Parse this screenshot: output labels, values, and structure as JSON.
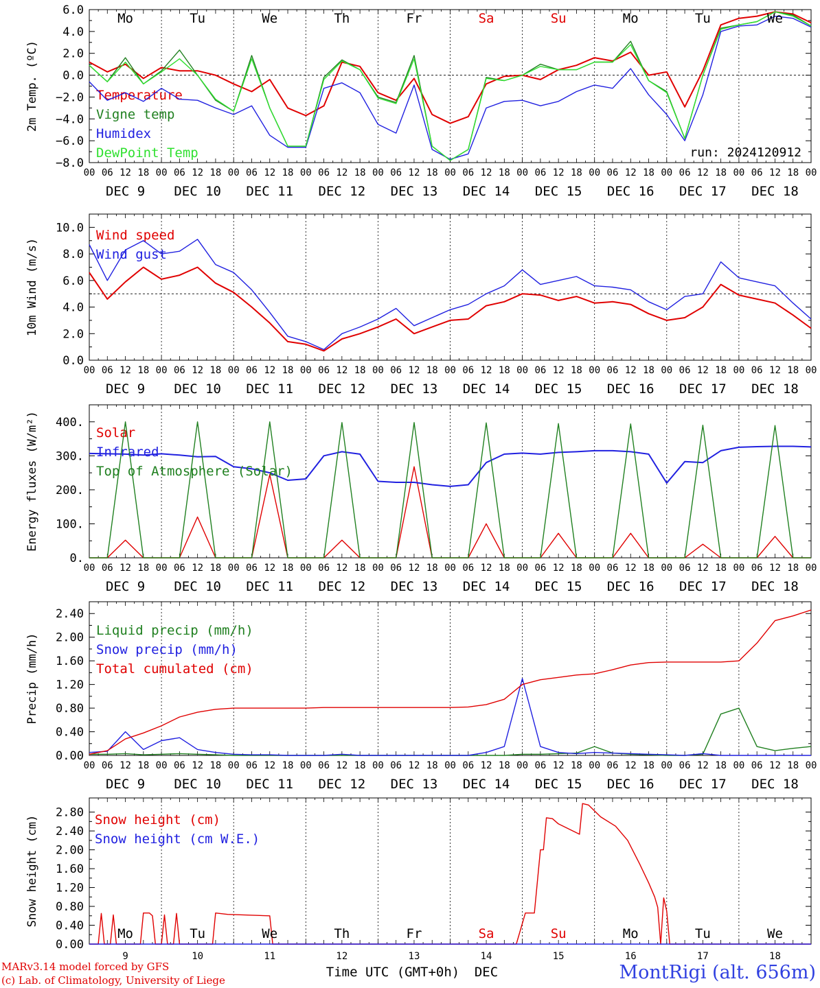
{
  "credits": {
    "line1": "MARv3.14 model forced by GFS",
    "line2": "(c) Lab. of Climatology, University of Liege"
  },
  "station": "MontRigi (alt. 656m)",
  "footer": {
    "xlabel": "Time UTC (GMT+0h)",
    "month": "DEC",
    "day_numbers": [
      "9",
      "10",
      "11",
      "12",
      "13",
      "14",
      "15",
      "16",
      "17",
      "18"
    ]
  },
  "timeline": {
    "days": [
      "DEC  9",
      "DEC 10",
      "DEC 11",
      "DEC 12",
      "DEC 13",
      "DEC 14",
      "DEC 15",
      "DEC 16",
      "DEC 17",
      "DEC 18"
    ],
    "weekdays": [
      "Mo",
      "Tu",
      "We",
      "Th",
      "Fr",
      "Sa",
      "Su",
      "Mo",
      "Tu",
      "We"
    ],
    "weekend_color": "#e00000",
    "hour_ticks": [
      "00",
      "06",
      "12",
      "18"
    ],
    "end_tick": "00"
  },
  "chart_data": [
    {
      "type": "line",
      "title": "",
      "ylabel": "2m Temp. (ºC)",
      "ylim": [
        -8,
        6
      ],
      "yticks": [
        "6.0",
        "4.0",
        "2.0",
        "0.0",
        "−2.0",
        "−4.0",
        "−6.0",
        "−8.0"
      ],
      "yticks_values": [
        6,
        4,
        2,
        0,
        -2,
        -4,
        -6,
        -8
      ],
      "reference_line": 0,
      "annotation": "run: 2024120912",
      "x_hours_since_dec9_00utc": [
        0,
        6,
        12,
        18,
        24,
        30,
        36,
        42,
        48,
        54,
        60,
        66,
        72,
        78,
        84,
        90,
        96,
        102,
        108,
        114,
        120,
        126,
        132,
        138,
        144,
        150,
        156,
        162,
        168,
        174,
        180,
        186,
        192,
        198,
        204,
        210,
        216,
        222,
        228,
        234,
        240
      ],
      "series": [
        {
          "name": "Temperature",
          "color": "#e00000",
          "values": [
            1.2,
            0.3,
            1.0,
            -0.3,
            0.7,
            0.4,
            0.4,
            0.0,
            -0.8,
            -1.5,
            -0.4,
            -3.0,
            -3.7,
            -2.8,
            1.2,
            0.8,
            -1.6,
            -2.3,
            -0.3,
            -3.6,
            -4.4,
            -3.8,
            -0.8,
            -0.1,
            0.0,
            -0.4,
            0.5,
            0.9,
            1.6,
            1.3,
            2.1,
            0.0,
            0.3,
            -2.9,
            0.4,
            4.6,
            5.2,
            5.4,
            5.8,
            5.6,
            4.8
          ]
        },
        {
          "name": "Vigne temp",
          "color": "#208020",
          "values": [
            0.9,
            -0.6,
            1.6,
            -0.8,
            0.4,
            2.3,
            0.0,
            -2.3,
            -3.3,
            1.8,
            -3.0,
            -6.5,
            -6.5,
            -0.2,
            1.4,
            0.5,
            -2.0,
            -2.5,
            1.8,
            -6.5,
            -7.8,
            -6.8,
            -0.2,
            -0.5,
            0.0,
            1.0,
            0.5,
            0.5,
            1.2,
            1.2,
            3.1,
            -0.5,
            -1.5,
            -5.8,
            0.0,
            4.3,
            4.6,
            4.9,
            5.8,
            5.5,
            4.5
          ]
        },
        {
          "name": "Humidex",
          "color": "#2020e0",
          "values": [
            -0.6,
            -2.3,
            -1.6,
            -2.4,
            -1.2,
            -2.2,
            -2.3,
            -3.0,
            -3.6,
            -2.8,
            -5.5,
            -6.6,
            -6.6,
            -1.2,
            -0.7,
            -1.6,
            -4.5,
            -5.3,
            -0.9,
            -6.8,
            -7.7,
            -7.2,
            -3.0,
            -2.4,
            -2.3,
            -2.8,
            -2.4,
            -1.5,
            -0.9,
            -1.2,
            0.6,
            -1.8,
            -3.6,
            -6.0,
            -1.8,
            4.0,
            4.5,
            4.6,
            5.4,
            5.2,
            4.4
          ]
        },
        {
          "name": "DewPoint Temp",
          "color": "#30e030",
          "values": [
            0.9,
            -0.6,
            1.2,
            -0.8,
            0.3,
            1.5,
            0.0,
            -2.2,
            -3.3,
            1.5,
            -3.0,
            -6.5,
            -6.5,
            -0.4,
            1.3,
            0.5,
            -2.1,
            -2.6,
            1.5,
            -6.5,
            -7.8,
            -6.8,
            -0.3,
            -0.5,
            0.0,
            0.8,
            0.5,
            0.5,
            1.2,
            1.2,
            2.8,
            -0.5,
            -1.6,
            -5.8,
            0.0,
            4.2,
            4.6,
            4.9,
            5.8,
            5.4,
            4.5
          ]
        }
      ]
    },
    {
      "type": "line",
      "title": "",
      "ylabel": "10m Wind (m/s)",
      "ylim": [
        0,
        11
      ],
      "yticks": [
        "10.0",
        "8.0",
        "6.0",
        "4.0",
        "2.0",
        "0.0"
      ],
      "yticks_values": [
        10,
        8,
        6,
        4,
        2,
        0
      ],
      "reference_line": 5,
      "x_hours_since_dec9_00utc": [
        0,
        6,
        12,
        18,
        24,
        30,
        36,
        42,
        48,
        54,
        60,
        66,
        72,
        78,
        84,
        90,
        96,
        102,
        108,
        114,
        120,
        126,
        132,
        138,
        144,
        150,
        156,
        162,
        168,
        174,
        180,
        186,
        192,
        198,
        204,
        210,
        216,
        222,
        228,
        234,
        240
      ],
      "series": [
        {
          "name": "Wind speed",
          "color": "#e00000",
          "values": [
            6.6,
            4.6,
            5.9,
            7.0,
            6.1,
            6.4,
            7.0,
            5.8,
            5.1,
            4.0,
            2.8,
            1.4,
            1.2,
            0.7,
            1.6,
            2.0,
            2.5,
            3.1,
            2.0,
            2.5,
            3.0,
            3.1,
            4.1,
            4.4,
            5.0,
            4.9,
            4.5,
            4.8,
            4.3,
            4.4,
            4.2,
            3.5,
            3.0,
            3.2,
            4.0,
            5.7,
            4.9,
            4.6,
            4.3,
            3.4,
            2.4
          ]
        },
        {
          "name": "Wind gust",
          "color": "#2020e0",
          "values": [
            8.7,
            6.0,
            8.3,
            9.0,
            8.0,
            8.2,
            9.1,
            7.2,
            6.6,
            5.3,
            3.6,
            1.8,
            1.4,
            0.8,
            2.0,
            2.5,
            3.1,
            3.9,
            2.6,
            3.2,
            3.8,
            4.2,
            5.0,
            5.6,
            6.8,
            5.7,
            6.0,
            6.3,
            5.6,
            5.5,
            5.3,
            4.4,
            3.8,
            4.8,
            5.0,
            7.4,
            6.2,
            5.9,
            5.6,
            4.3,
            3.1
          ]
        }
      ]
    },
    {
      "type": "line",
      "title": "",
      "ylabel": "Energy fluxes (W/m²)",
      "ylim": [
        0,
        450
      ],
      "yticks": [
        "400.",
        "300.",
        "200.",
        "100.",
        "0."
      ],
      "yticks_values": [
        400,
        300,
        200,
        100,
        0
      ],
      "x_hours_since_dec9_00utc": [
        0,
        6,
        12,
        18,
        24,
        30,
        36,
        42,
        48,
        54,
        60,
        66,
        72,
        78,
        84,
        90,
        96,
        102,
        108,
        114,
        120,
        126,
        132,
        138,
        144,
        150,
        156,
        162,
        168,
        174,
        180,
        186,
        192,
        198,
        204,
        210,
        216,
        222,
        228,
        234,
        240
      ],
      "series": [
        {
          "name": "Solar",
          "color": "#e00000",
          "values": [
            0,
            0,
            52,
            0,
            0,
            0,
            120,
            0,
            0,
            0,
            245,
            0,
            0,
            0,
            52,
            0,
            0,
            0,
            268,
            0,
            0,
            0,
            100,
            0,
            0,
            0,
            72,
            0,
            0,
            0,
            72,
            0,
            0,
            0,
            40,
            0,
            0,
            0,
            63,
            0,
            0
          ]
        },
        {
          "name": "Infrared",
          "color": "#2020e0",
          "values": [
            307,
            306,
            305,
            302,
            306,
            302,
            297,
            298,
            268,
            262,
            250,
            228,
            232,
            300,
            312,
            305,
            225,
            222,
            222,
            215,
            210,
            215,
            280,
            305,
            308,
            305,
            310,
            312,
            315,
            315,
            312,
            305,
            220,
            283,
            280,
            315,
            325,
            327,
            328,
            328,
            326
          ]
        },
        {
          "name": "Top of Atmosphere (Solar)",
          "color": "#208020",
          "values": [
            0,
            0,
            400,
            0,
            0,
            0,
            400,
            0,
            0,
            0,
            400,
            0,
            0,
            0,
            398,
            0,
            0,
            0,
            398,
            0,
            0,
            0,
            397,
            0,
            0,
            0,
            395,
            0,
            0,
            0,
            394,
            0,
            0,
            0,
            390,
            0,
            0,
            0,
            389,
            0,
            0
          ]
        }
      ]
    },
    {
      "type": "line",
      "title": "",
      "ylabel": "Precip (mm/h)",
      "ylim": [
        0,
        2.6
      ],
      "yticks": [
        "2.40",
        "2.00",
        "1.60",
        "1.20",
        "0.80",
        "0.40",
        "0.00"
      ],
      "yticks_values": [
        2.4,
        2.0,
        1.6,
        1.2,
        0.8,
        0.4,
        0.0
      ],
      "x_hours_since_dec9_00utc": [
        0,
        6,
        12,
        18,
        24,
        30,
        36,
        42,
        48,
        54,
        60,
        66,
        72,
        78,
        84,
        90,
        96,
        102,
        108,
        114,
        120,
        126,
        132,
        138,
        144,
        150,
        156,
        162,
        168,
        174,
        180,
        186,
        192,
        198,
        204,
        210,
        216,
        222,
        228,
        234,
        240
      ],
      "series": [
        {
          "name": "Liquid precip (mm/h)",
          "color": "#208020",
          "values": [
            0.02,
            0.02,
            0.03,
            0.01,
            0.02,
            0.03,
            0.02,
            0.01,
            0.0,
            0.0,
            0.0,
            0.0,
            0.0,
            0.0,
            0.0,
            0.0,
            0.0,
            0.0,
            0.0,
            0.0,
            0.0,
            0.0,
            0.0,
            0.0,
            0.02,
            0.02,
            0.03,
            0.04,
            0.15,
            0.04,
            0.02,
            0.01,
            0.0,
            0.0,
            0.02,
            0.7,
            0.8,
            0.15,
            0.08,
            0.12,
            0.15
          ]
        },
        {
          "name": "Snow precip (mm/h)",
          "color": "#2020e0",
          "values": [
            0.05,
            0.07,
            0.4,
            0.1,
            0.25,
            0.3,
            0.1,
            0.05,
            0.02,
            0.01,
            0.01,
            0.0,
            0.0,
            0.0,
            0.02,
            0.0,
            0.0,
            0.0,
            0.0,
            0.0,
            0.0,
            0.0,
            0.05,
            0.15,
            1.3,
            0.15,
            0.05,
            0.03,
            0.05,
            0.04,
            0.03,
            0.02,
            0.01,
            0.0,
            0.03,
            0.0,
            0.0,
            0.0,
            0.0,
            0.0,
            0.0
          ]
        },
        {
          "name": "Total cumulated (cm)",
          "color": "#e00000",
          "values": [
            0.02,
            0.08,
            0.28,
            0.38,
            0.5,
            0.65,
            0.73,
            0.78,
            0.8,
            0.8,
            0.8,
            0.8,
            0.8,
            0.81,
            0.81,
            0.81,
            0.81,
            0.81,
            0.81,
            0.81,
            0.81,
            0.82,
            0.86,
            0.95,
            1.2,
            1.28,
            1.32,
            1.36,
            1.38,
            1.45,
            1.53,
            1.57,
            1.58,
            1.58,
            1.58,
            1.58,
            1.6,
            1.9,
            2.28,
            2.36,
            2.46
          ]
        }
      ]
    },
    {
      "type": "line",
      "title": "",
      "ylabel": "Snow height (cm)",
      "ylim": [
        0,
        3.1
      ],
      "yticks": [
        "2.80",
        "2.40",
        "2.00",
        "1.60",
        "1.20",
        "0.80",
        "0.40",
        "0.00"
      ],
      "yticks_values": [
        2.8,
        2.4,
        2.0,
        1.6,
        1.2,
        0.8,
        0.4,
        0.0
      ],
      "series": [
        {
          "name": "Snow height (cm)",
          "color": "#e00000",
          "points": [
            [
              0,
              0
            ],
            [
              3,
              0
            ],
            [
              4,
              0.65
            ],
            [
              5,
              0
            ],
            [
              7,
              0
            ],
            [
              8,
              0.62
            ],
            [
              9,
              0
            ],
            [
              17,
              0
            ],
            [
              18,
              0.66
            ],
            [
              20,
              0.66
            ],
            [
              21,
              0.6
            ],
            [
              22,
              0
            ],
            [
              24,
              0
            ],
            [
              25,
              0.62
            ],
            [
              26,
              0
            ],
            [
              28,
              0
            ],
            [
              29,
              0.65
            ],
            [
              30,
              0
            ],
            [
              41,
              0
            ],
            [
              42,
              0.66
            ],
            [
              46,
              0.63
            ],
            [
              60,
              0.6
            ],
            [
              61,
              0
            ],
            [
              142,
              0
            ],
            [
              145,
              0.66
            ],
            [
              148,
              0.66
            ],
            [
              150,
              2.0
            ],
            [
              151,
              2.0
            ],
            [
              152,
              2.68
            ],
            [
              154,
              2.66
            ],
            [
              156,
              2.55
            ],
            [
              163,
              2.33
            ],
            [
              164,
              2.98
            ],
            [
              166,
              2.95
            ],
            [
              170,
              2.7
            ],
            [
              175,
              2.5
            ],
            [
              179,
              2.2
            ],
            [
              183,
              1.7
            ],
            [
              186,
              1.3
            ],
            [
              188,
              1.0
            ],
            [
              189,
              0.78
            ],
            [
              190,
              0
            ],
            [
              191,
              0.98
            ],
            [
              192,
              0.7
            ],
            [
              193,
              0
            ],
            [
              240,
              0
            ]
          ]
        },
        {
          "name": "Snow height (cm W.E.)",
          "color": "#2020e0",
          "points": [
            [
              0,
              0
            ],
            [
              240,
              0
            ]
          ]
        }
      ]
    }
  ]
}
